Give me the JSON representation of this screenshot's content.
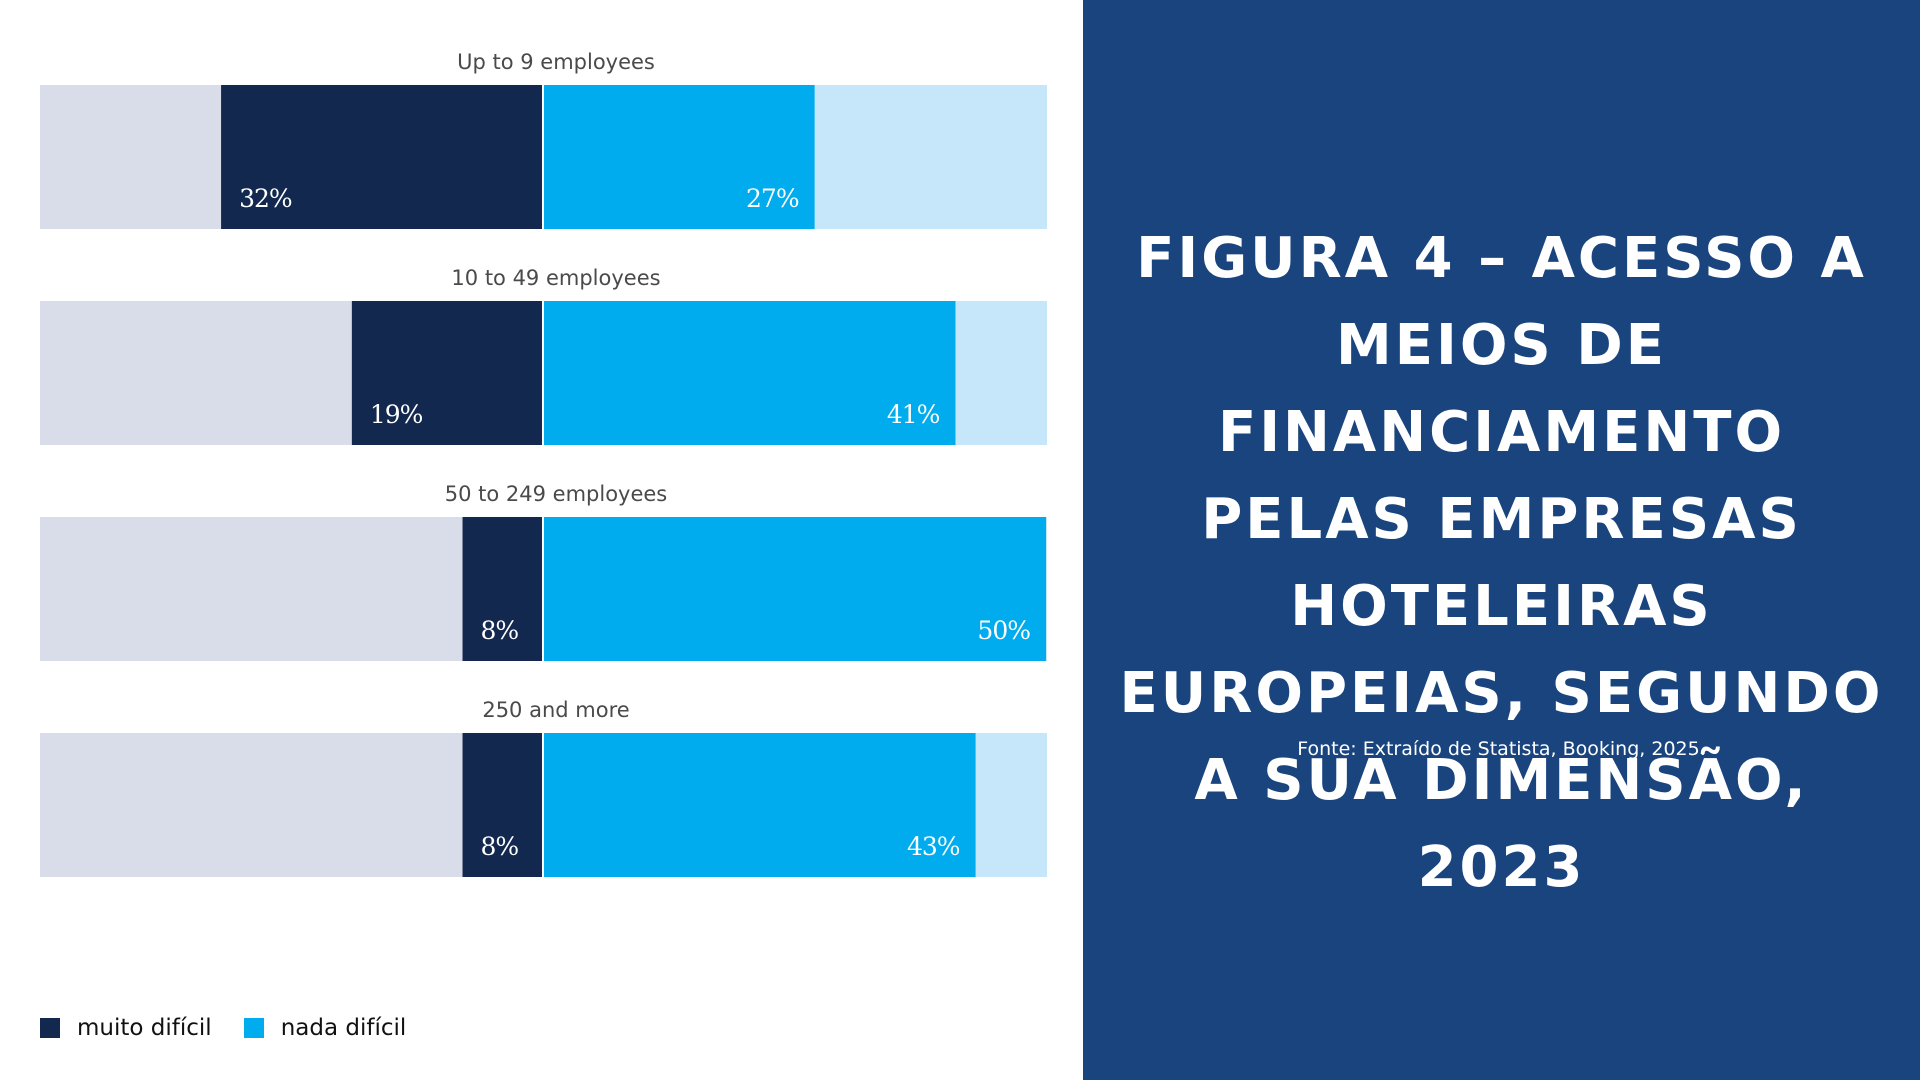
{
  "chart_data": {
    "type": "bar",
    "orientation": "horizontal-diverging",
    "categories": [
      "Up to 9 employees",
      "10 to 49 employees",
      "50 to 249 employees",
      "250 and more"
    ],
    "series": [
      {
        "name": "muito difícil",
        "values": [
          32,
          19,
          8,
          8
        ],
        "labels": [
          "32%",
          "19%",
          "8%",
          "8%"
        ],
        "color": "#13284f"
      },
      {
        "name": "nada difícil",
        "values": [
          27,
          41,
          50,
          43
        ],
        "labels": [
          "27%",
          "41%",
          "50%",
          "43%"
        ],
        "color": "#00aced"
      }
    ],
    "background_colors": {
      "left": "#d9dce9",
      "right": "#c6e7f9"
    },
    "xlim": [
      -50,
      50
    ],
    "legend_position": "bottom-left"
  },
  "legend": {
    "items": [
      {
        "label": "muito difícil",
        "color": "#13284f"
      },
      {
        "label": "nada difícil",
        "color": "#00aced"
      }
    ]
  },
  "title": "FIGURA 4 – ACESSO A MEIOS DE FINANCIAMENTO PELAS EMPRESAS HOTELEIRAS EUROPEIAS, SEGUNDO A SUA DIMENSÃO, 2023",
  "source": "Fonte: Extraído de Statista, Booking, 2025.",
  "colors": {
    "panel": "#1a447e"
  }
}
